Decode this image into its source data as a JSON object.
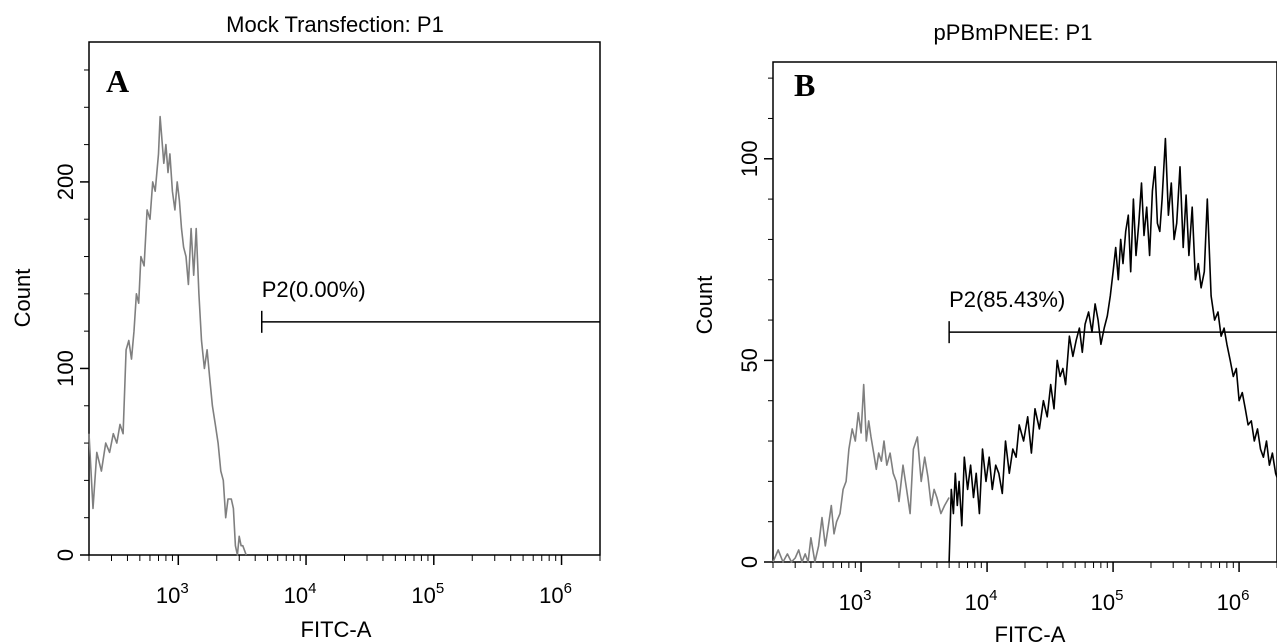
{
  "chart_data": [
    {
      "type": "line",
      "panel_label": "A",
      "title": "Mock Transfection: P1",
      "xlabel": "FITC-A",
      "ylabel": "Count",
      "x_scale": "log",
      "xlim": [
        200,
        2000000
      ],
      "ylim": [
        0,
        275
      ],
      "x_ticks": [
        {
          "value": 1000,
          "base": "10",
          "exp": "3"
        },
        {
          "value": 10000,
          "base": "10",
          "exp": "4"
        },
        {
          "value": 100000,
          "base": "10",
          "exp": "5"
        },
        {
          "value": 1000000,
          "base": "10",
          "exp": "6"
        }
      ],
      "y_ticks": [
        {
          "value": 0,
          "label": "0"
        },
        {
          "value": 100,
          "label": "100"
        },
        {
          "value": 200,
          "label": "200"
        }
      ],
      "gate": {
        "label": "P2(0.00%)",
        "x_start": 4500,
        "y": 125
      },
      "grid": false,
      "series": [
        {
          "color": "#7f7f7f",
          "x": [
            200,
            215,
            230,
            250,
            270,
            290,
            310,
            330,
            350,
            370,
            390,
            410,
            430,
            450,
            470,
            490,
            510,
            540,
            570,
            600,
            630,
            660,
            700,
            720,
            740,
            770,
            800,
            830,
            860,
            900,
            940,
            980,
            1020,
            1060,
            1100,
            1150,
            1200,
            1260,
            1320,
            1380,
            1450,
            1520,
            1600,
            1680,
            1760,
            1850,
            1950,
            2050,
            2150,
            2250,
            2350,
            2450,
            2600,
            2700,
            2800,
            2900,
            3000,
            3100,
            3200,
            3400
          ],
          "y": [
            65,
            25,
            55,
            45,
            60,
            55,
            65,
            60,
            70,
            65,
            110,
            115,
            105,
            120,
            140,
            135,
            160,
            155,
            185,
            180,
            200,
            195,
            215,
            235,
            225,
            210,
            220,
            205,
            215,
            195,
            185,
            200,
            190,
            175,
            165,
            160,
            145,
            175,
            150,
            175,
            140,
            115,
            100,
            110,
            95,
            80,
            70,
            60,
            45,
            40,
            20,
            30,
            30,
            25,
            5,
            0,
            10,
            5,
            5,
            0
          ]
        }
      ]
    },
    {
      "type": "line",
      "panel_label": "B",
      "title": "pPBmPNEE: P1",
      "xlabel": "FITC-A",
      "ylabel": "Count",
      "x_scale": "log",
      "xlim": [
        200,
        2000000
      ],
      "ylim": [
        0,
        124
      ],
      "x_ticks": [
        {
          "value": 1000,
          "base": "10",
          "exp": "3"
        },
        {
          "value": 10000,
          "base": "10",
          "exp": "4"
        },
        {
          "value": 100000,
          "base": "10",
          "exp": "5"
        },
        {
          "value": 1000000,
          "base": "10",
          "exp": "6"
        }
      ],
      "y_ticks": [
        {
          "value": 0,
          "label": "0"
        },
        {
          "value": 50,
          "label": "50"
        },
        {
          "value": 100,
          "label": "100"
        }
      ],
      "gate": {
        "label": "P2(85.43%)",
        "x_start": 5000,
        "y": 57
      },
      "grid": false,
      "series": [
        {
          "color": "#7f7f7f",
          "x": [
            200,
            220,
            240,
            260,
            280,
            300,
            320,
            340,
            360,
            380,
            400,
            430,
            460,
            490,
            520,
            550,
            580,
            610,
            640,
            680,
            720,
            760,
            800,
            850,
            900,
            950,
            1000,
            1050,
            1100,
            1150,
            1200,
            1260,
            1320,
            1380,
            1450,
            1520,
            1600,
            1700,
            1800,
            1900,
            2000,
            2150,
            2300,
            2450,
            2600,
            2800,
            3000,
            3200,
            3400,
            3600,
            3800,
            4000,
            4300,
            4600,
            5000
          ],
          "y": [
            0,
            3,
            0,
            2,
            0,
            1,
            3,
            0,
            2,
            0,
            6,
            0,
            4,
            11,
            4,
            9,
            14,
            7,
            10,
            12,
            18,
            20,
            28,
            33,
            30,
            37,
            32,
            44,
            30,
            35,
            31,
            27,
            23,
            27,
            25,
            30,
            24,
            27,
            22,
            20,
            15,
            24,
            18,
            12,
            28,
            31,
            20,
            26,
            21,
            14,
            18,
            16,
            12,
            14,
            16
          ]
        },
        {
          "color": "#000000",
          "x": [
            5000,
            5200,
            5400,
            5600,
            5800,
            6000,
            6300,
            6600,
            7000,
            7400,
            7800,
            8200,
            8700,
            9200,
            9800,
            10400,
            11000,
            11700,
            12400,
            13200,
            14000,
            15000,
            16000,
            17000,
            18000,
            19500,
            21000,
            22500,
            24000,
            26000,
            28000,
            30000,
            32000,
            34000,
            36000,
            38000,
            40000,
            42000,
            45000,
            48000,
            51000,
            54000,
            57000,
            60000,
            64000,
            68000,
            72000,
            76000,
            80000,
            85000,
            90000,
            95000,
            100000,
            105000,
            110000,
            115000,
            120000,
            126000,
            132000,
            138000,
            145000,
            152000,
            160000,
            168000,
            176000,
            185000,
            195000,
            205000,
            215000,
            225000,
            235000,
            245000,
            260000,
            275000,
            290000,
            305000,
            320000,
            340000,
            360000,
            380000,
            400000,
            425000,
            450000,
            475000,
            500000,
            530000,
            560000,
            600000,
            640000,
            680000,
            720000,
            760000,
            800000,
            850000,
            900000,
            950000,
            1000000,
            1060000,
            1120000,
            1180000,
            1250000,
            1320000,
            1400000,
            1480000,
            1560000,
            1650000,
            1740000,
            1840000,
            1950000,
            2000000
          ],
          "y": [
            0,
            18,
            12,
            22,
            14,
            20,
            9,
            26,
            18,
            24,
            16,
            22,
            12,
            28,
            20,
            26,
            18,
            24,
            22,
            17,
            30,
            22,
            28,
            26,
            34,
            30,
            36,
            27,
            38,
            33,
            40,
            36,
            44,
            38,
            50,
            46,
            48,
            44,
            56,
            51,
            55,
            58,
            52,
            59,
            62,
            57,
            64,
            60,
            54,
            58,
            61,
            66,
            72,
            78,
            70,
            80,
            74,
            82,
            86,
            72,
            90,
            76,
            84,
            94,
            81,
            88,
            76,
            92,
            98,
            84,
            82,
            90,
            105,
            86,
            94,
            80,
            84,
            98,
            78,
            91,
            76,
            88,
            70,
            74,
            68,
            72,
            90,
            66,
            60,
            62,
            56,
            58,
            54,
            50,
            46,
            48,
            40,
            42,
            38,
            34,
            35,
            30,
            33,
            28,
            26,
            30,
            24,
            27,
            22,
            21
          ]
        }
      ]
    }
  ]
}
